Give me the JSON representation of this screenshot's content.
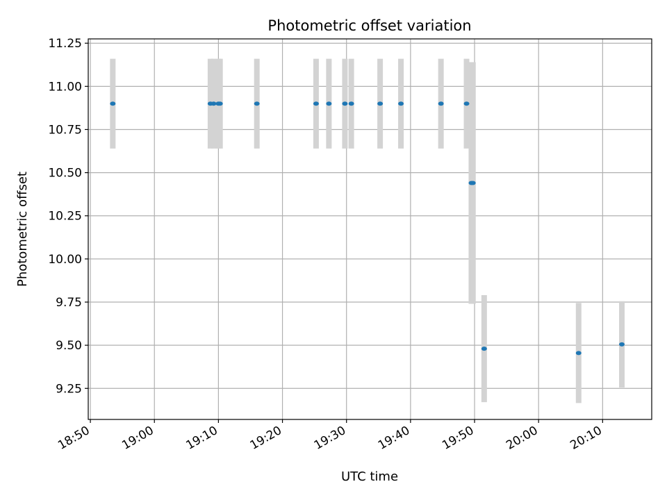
{
  "chart_data": {
    "type": "scatter",
    "title": "Photometric offset variation",
    "xlabel": "UTC time",
    "ylabel": "Photometric offset",
    "xlim": [
      "18:49:40",
      "20:17:40"
    ],
    "ylim": [
      9.07,
      11.275
    ],
    "grid": true,
    "x_ticks": [
      "18:50",
      "19:00",
      "19:10",
      "19:20",
      "19:30",
      "19:40",
      "19:50",
      "20:00",
      "20:10"
    ],
    "y_ticks": [
      "9.25",
      "9.50",
      "9.75",
      "10.00",
      "10.25",
      "10.50",
      "10.75",
      "11.00",
      "11.25"
    ],
    "points": [
      {
        "time": "18:53:30",
        "value": 10.9,
        "err": 0.26
      },
      {
        "time": "19:08:45",
        "value": 10.9,
        "err": 0.26
      },
      {
        "time": "19:09:15",
        "value": 10.9,
        "err": 0.26
      },
      {
        "time": "19:10:00",
        "value": 10.9,
        "err": 0.26
      },
      {
        "time": "19:10:15",
        "value": 10.9,
        "err": 0.26
      },
      {
        "time": "19:16:00",
        "value": 10.9,
        "err": 0.26
      },
      {
        "time": "19:25:15",
        "value": 10.9,
        "err": 0.26
      },
      {
        "time": "19:27:15",
        "value": 10.9,
        "err": 0.26
      },
      {
        "time": "19:29:45",
        "value": 10.9,
        "err": 0.26
      },
      {
        "time": "19:30:45",
        "value": 10.9,
        "err": 0.26
      },
      {
        "time": "19:35:15",
        "value": 10.9,
        "err": 0.26
      },
      {
        "time": "19:38:30",
        "value": 10.9,
        "err": 0.26
      },
      {
        "time": "19:44:45",
        "value": 10.9,
        "err": 0.26
      },
      {
        "time": "19:48:45",
        "value": 10.9,
        "err": 0.26
      },
      {
        "time": "19:49:30",
        "value": 10.44,
        "err": 0.7
      },
      {
        "time": "19:49:45",
        "value": 10.44,
        "err": 0.7
      },
      {
        "time": "19:51:30",
        "value": 9.48,
        "err": 0.31
      },
      {
        "time": "20:06:15",
        "value": 9.455,
        "err": 0.29
      },
      {
        "time": "20:13:00",
        "value": 9.505,
        "err": 0.25
      }
    ],
    "colors": {
      "marker": "#1f77b4",
      "errorbar": "#d3d3d3",
      "grid": "#b0b0b0"
    }
  }
}
